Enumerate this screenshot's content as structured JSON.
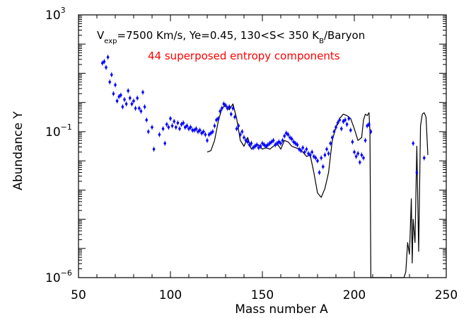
{
  "chart_data": {
    "type": "scatter",
    "annotation": {
      "v_prefix": "V",
      "v_subscript": "exp",
      "line1_rest": "=7500 Km/s, Ye=0.45, 130<S< 350 K",
      "kb_subscript": "B",
      "baryon": "/Baryon",
      "line2": "44 superposed entropy components"
    },
    "xlabel": "Mass number A",
    "ylabel": "Abundance Y",
    "xlim": [
      50,
      250
    ],
    "ylog_exp_range": [
      -6,
      3
    ],
    "x_ticks": [
      "50",
      "100",
      "150",
      "200",
      "250"
    ],
    "y_ticks": [
      {
        "exp": 3,
        "base": "10",
        "sup": "3"
      },
      {
        "exp": -1,
        "base": "10",
        "sup": "−1"
      },
      {
        "exp": -6,
        "base": "10",
        "sup": "−6"
      }
    ],
    "colors": {
      "model": "#000000",
      "data": "#0000ff",
      "subtitle": "#ff0000"
    },
    "series": [
      {
        "kind": "line",
        "points": [
          [
            120,
            -1.7
          ],
          [
            122,
            -1.65
          ],
          [
            124,
            -1.3
          ],
          [
            126,
            -0.65
          ],
          [
            128,
            -0.2
          ],
          [
            130,
            -0.1
          ],
          [
            132,
            -0.25
          ],
          [
            134,
            -0.05
          ],
          [
            136,
            -0.55
          ],
          [
            138,
            -1.3
          ],
          [
            140,
            -1.5
          ],
          [
            142,
            -1.2
          ],
          [
            144,
            -1.6
          ],
          [
            146,
            -1.5
          ],
          [
            148,
            -1.45
          ],
          [
            150,
            -1.6
          ],
          [
            152,
            -1.55
          ],
          [
            154,
            -1.6
          ],
          [
            156,
            -1.5
          ],
          [
            158,
            -1.4
          ],
          [
            160,
            -1.6
          ],
          [
            162,
            -1.3
          ],
          [
            164,
            -1.35
          ],
          [
            166,
            -1.5
          ],
          [
            168,
            -1.55
          ],
          [
            170,
            -1.6
          ],
          [
            172,
            -1.7
          ],
          [
            174,
            -1.85
          ],
          [
            176,
            -1.8
          ],
          [
            178,
            -2.4
          ],
          [
            180,
            -3.1
          ],
          [
            182,
            -3.25
          ],
          [
            184,
            -2.95
          ],
          [
            186,
            -2.4
          ],
          [
            188,
            -1.3
          ],
          [
            190,
            -0.85
          ],
          [
            192,
            -0.55
          ],
          [
            194,
            -0.4
          ],
          [
            196,
            -0.45
          ],
          [
            198,
            -0.55
          ],
          [
            200,
            -0.9
          ],
          [
            202,
            -1.3
          ],
          [
            204,
            -1.2
          ],
          [
            205,
            -0.6
          ],
          [
            206,
            -0.4
          ],
          [
            207,
            -0.45
          ],
          [
            208,
            -0.35
          ],
          [
            208.5,
            -1.0
          ],
          [
            209,
            -6.2
          ],
          [
            227,
            -6.2
          ],
          [
            228,
            -5.8
          ],
          [
            229,
            -4.8
          ],
          [
            230,
            -5.2
          ],
          [
            231,
            -3.3
          ],
          [
            231.5,
            -5.5
          ],
          [
            232,
            -4.0
          ],
          [
            233,
            -4.8
          ],
          [
            234,
            -1.5
          ],
          [
            235,
            -5.1
          ],
          [
            236,
            -0.8
          ],
          [
            237,
            -0.4
          ],
          [
            238,
            -0.35
          ],
          [
            239,
            -0.5
          ],
          [
            240,
            -1.8
          ]
        ]
      },
      {
        "kind": "points",
        "points": [
          [
            63,
            1.35
          ],
          [
            64,
            1.4
          ],
          [
            65,
            1.2
          ],
          [
            66,
            1.55
          ],
          [
            67,
            0.7
          ],
          [
            68,
            0.95
          ],
          [
            69,
            0.3
          ],
          [
            70,
            0.6
          ],
          [
            71,
            0.05
          ],
          [
            72,
            0.2
          ],
          [
            73,
            0.25
          ],
          [
            74,
            -0.15
          ],
          [
            75,
            0.1
          ],
          [
            76,
            -0.05
          ],
          [
            77,
            0.4
          ],
          [
            78,
            0.15
          ],
          [
            79,
            -0.05
          ],
          [
            80,
            0.05
          ],
          [
            81,
            -0.2
          ],
          [
            82,
            0.15
          ],
          [
            83,
            -0.2
          ],
          [
            84,
            -0.3
          ],
          [
            85,
            0.35
          ],
          [
            86,
            -0.15
          ],
          [
            87,
            -0.6
          ],
          [
            88,
            -1.0
          ],
          [
            90,
            -0.85
          ],
          [
            91,
            -1.6
          ],
          [
            94,
            -1.1
          ],
          [
            96,
            -0.9
          ],
          [
            97,
            -1.4
          ],
          [
            98,
            -0.75
          ],
          [
            99,
            -0.85
          ],
          [
            100,
            -0.55
          ],
          [
            101,
            -0.8
          ],
          [
            102,
            -0.65
          ],
          [
            103,
            -0.85
          ],
          [
            104,
            -0.7
          ],
          [
            105,
            -0.9
          ],
          [
            106,
            -0.75
          ],
          [
            107,
            -0.7
          ],
          [
            108,
            -0.85
          ],
          [
            109,
            -0.8
          ],
          [
            110,
            -0.9
          ],
          [
            111,
            -0.85
          ],
          [
            112,
            -0.95
          ],
          [
            113,
            -0.95
          ],
          [
            114,
            -0.9
          ],
          [
            115,
            -1.0
          ],
          [
            116,
            -0.95
          ],
          [
            117,
            -1.05
          ],
          [
            118,
            -1.0
          ],
          [
            119,
            -1.1
          ],
          [
            120,
            -1.3
          ],
          [
            121,
            -1.1
          ],
          [
            122,
            -1.05
          ],
          [
            123,
            -1.0
          ],
          [
            124,
            -0.8
          ],
          [
            125,
            -0.6
          ],
          [
            126,
            -0.55
          ],
          [
            127,
            -0.3
          ],
          [
            128,
            -0.2
          ],
          [
            129,
            -0.05
          ],
          [
            130,
            -0.1
          ],
          [
            131,
            -0.2
          ],
          [
            132,
            -0.15
          ],
          [
            133,
            -0.4
          ],
          [
            134,
            -0.2
          ],
          [
            135,
            -0.5
          ],
          [
            136,
            -0.9
          ],
          [
            137,
            -0.8
          ],
          [
            138,
            -1.1
          ],
          [
            139,
            -1.0
          ],
          [
            140,
            -1.2
          ],
          [
            141,
            -1.3
          ],
          [
            142,
            -1.35
          ],
          [
            143,
            -1.45
          ],
          [
            144,
            -1.4
          ],
          [
            145,
            -1.55
          ],
          [
            146,
            -1.5
          ],
          [
            147,
            -1.45
          ],
          [
            148,
            -1.55
          ],
          [
            149,
            -1.5
          ],
          [
            150,
            -1.4
          ],
          [
            151,
            -1.45
          ],
          [
            152,
            -1.5
          ],
          [
            153,
            -1.45
          ],
          [
            154,
            -1.4
          ],
          [
            155,
            -1.35
          ],
          [
            156,
            -1.3
          ],
          [
            157,
            -1.45
          ],
          [
            158,
            -1.4
          ],
          [
            159,
            -1.35
          ],
          [
            160,
            -1.4
          ],
          [
            161,
            -1.3
          ],
          [
            162,
            -1.15
          ],
          [
            163,
            -1.05
          ],
          [
            164,
            -1.1
          ],
          [
            165,
            -1.2
          ],
          [
            166,
            -1.25
          ],
          [
            167,
            -1.35
          ],
          [
            168,
            -1.4
          ],
          [
            169,
            -1.45
          ],
          [
            170,
            -1.6
          ],
          [
            171,
            -1.65
          ],
          [
            172,
            -1.55
          ],
          [
            173,
            -1.7
          ],
          [
            174,
            -1.6
          ],
          [
            175,
            -1.75
          ],
          [
            176,
            -1.8
          ],
          [
            177,
            -1.7
          ],
          [
            178,
            -1.85
          ],
          [
            179,
            -1.9
          ],
          [
            180,
            -2.0
          ],
          [
            181,
            -2.4
          ],
          [
            182,
            -1.9
          ],
          [
            183,
            -2.2
          ],
          [
            184,
            -1.8
          ],
          [
            185,
            -1.6
          ],
          [
            186,
            -1.75
          ],
          [
            187,
            -1.4
          ],
          [
            188,
            -1.2
          ],
          [
            189,
            -1.0
          ],
          [
            190,
            -0.85
          ],
          [
            191,
            -0.7
          ],
          [
            192,
            -0.6
          ],
          [
            193,
            -0.9
          ],
          [
            194,
            -0.65
          ],
          [
            195,
            -0.6
          ],
          [
            196,
            -0.75
          ],
          [
            197,
            -0.55
          ],
          [
            198,
            -0.95
          ],
          [
            199,
            -1.35
          ],
          [
            200,
            -1.7
          ],
          [
            201,
            -1.85
          ],
          [
            202,
            -1.75
          ],
          [
            203,
            -2.05
          ],
          [
            204,
            -1.8
          ],
          [
            205,
            -1.9
          ],
          [
            206,
            -1.3
          ],
          [
            207,
            -0.8
          ],
          [
            208,
            -0.75
          ],
          [
            209,
            -1.0
          ],
          [
            232,
            -1.4
          ],
          [
            234,
            -2.4
          ],
          [
            238,
            -1.9
          ]
        ]
      }
    ]
  }
}
